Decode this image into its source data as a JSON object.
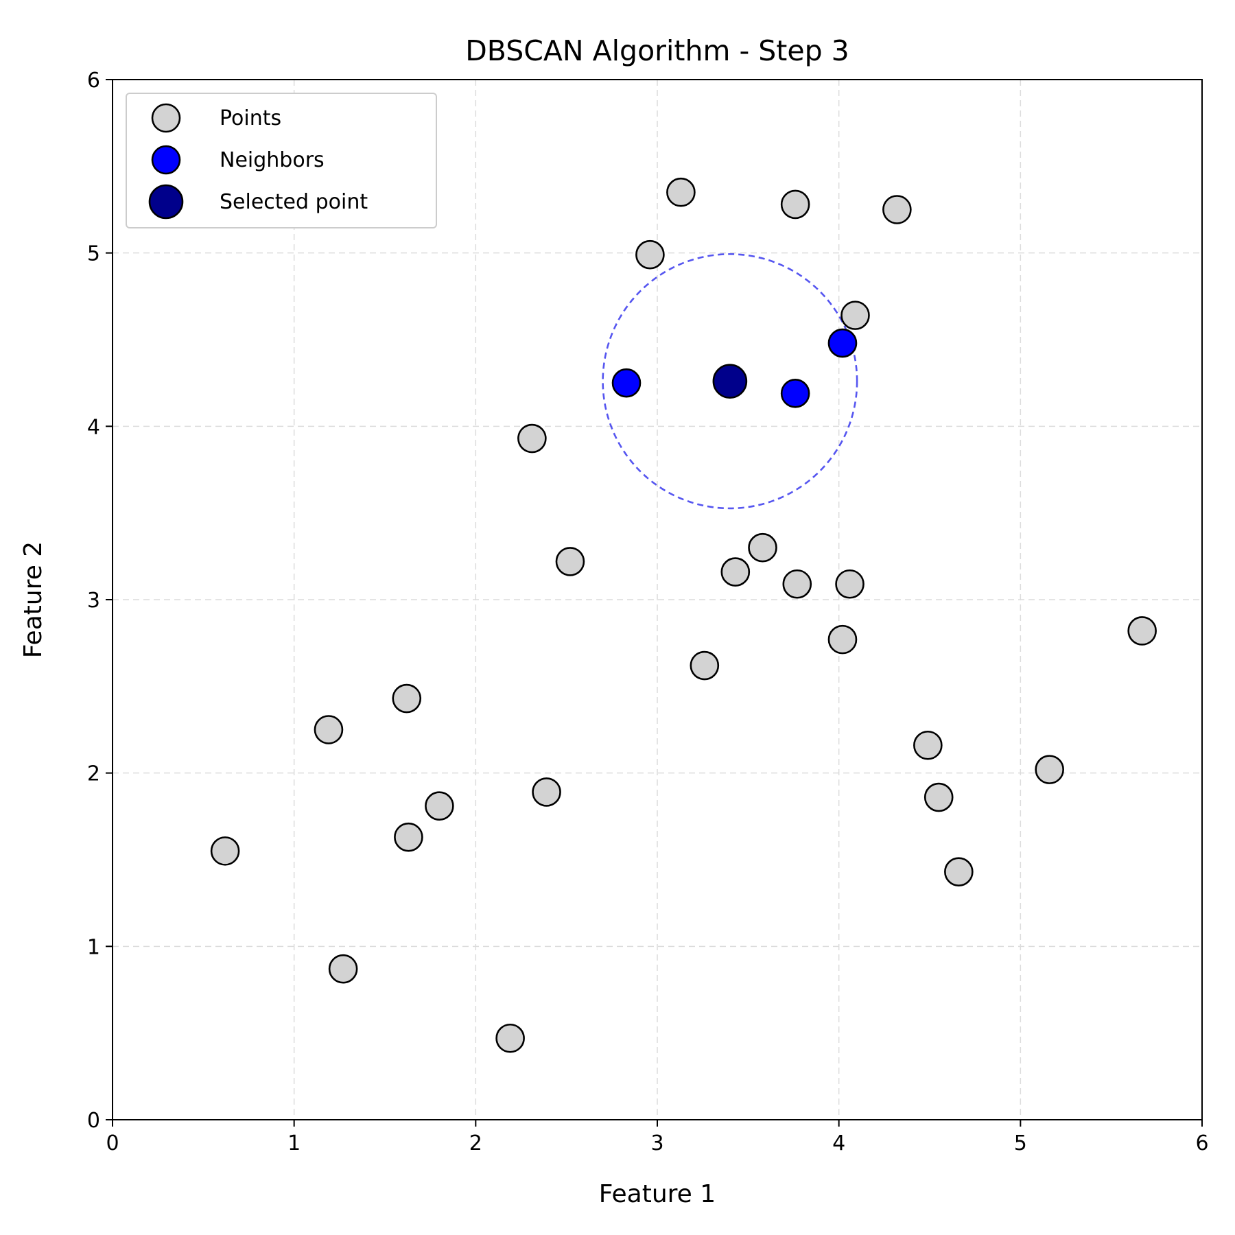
{
  "chart_data": {
    "type": "scatter",
    "title": "DBSCAN Algorithm - Step 3",
    "xlabel": "Feature 1",
    "ylabel": "Feature 2",
    "xlim": [
      0,
      6
    ],
    "ylim": [
      0,
      6
    ],
    "xticks": [
      "0",
      "1",
      "2",
      "3",
      "4",
      "5",
      "6"
    ],
    "yticks": [
      "0",
      "1",
      "2",
      "3",
      "4",
      "5",
      "6"
    ],
    "grid": true,
    "legend_position": "top-left",
    "colors": {
      "points": "#d3d3d3",
      "neighbors": "#0000ff",
      "selected": "#00008b",
      "epsilon_circle": "#4444ee"
    },
    "series": [
      {
        "name": "Points",
        "points": [
          [
            3.13,
            5.35
          ],
          [
            3.76,
            5.28
          ],
          [
            4.32,
            5.25
          ],
          [
            2.96,
            4.99
          ],
          [
            4.09,
            4.64
          ],
          [
            2.31,
            3.93
          ],
          [
            2.52,
            3.22
          ],
          [
            3.58,
            3.3
          ],
          [
            3.43,
            3.16
          ],
          [
            3.77,
            3.09
          ],
          [
            4.06,
            3.09
          ],
          [
            4.02,
            2.77
          ],
          [
            3.26,
            2.62
          ],
          [
            5.67,
            2.82
          ],
          [
            1.62,
            2.43
          ],
          [
            1.19,
            2.25
          ],
          [
            4.49,
            2.16
          ],
          [
            5.16,
            2.02
          ],
          [
            4.55,
            1.86
          ],
          [
            2.39,
            1.89
          ],
          [
            1.8,
            1.81
          ],
          [
            1.63,
            1.63
          ],
          [
            0.62,
            1.55
          ],
          [
            4.66,
            1.43
          ],
          [
            1.27,
            0.87
          ],
          [
            2.19,
            0.47
          ]
        ]
      },
      {
        "name": "Neighbors",
        "points": [
          [
            2.83,
            4.25
          ],
          [
            3.76,
            4.19
          ],
          [
            4.02,
            4.48
          ]
        ]
      },
      {
        "name": "Selected point",
        "points": [
          [
            3.4,
            4.26
          ]
        ]
      }
    ],
    "epsilon_circle": {
      "center": [
        3.4,
        4.26
      ],
      "radius": 0.7,
      "style": "dashed"
    }
  }
}
